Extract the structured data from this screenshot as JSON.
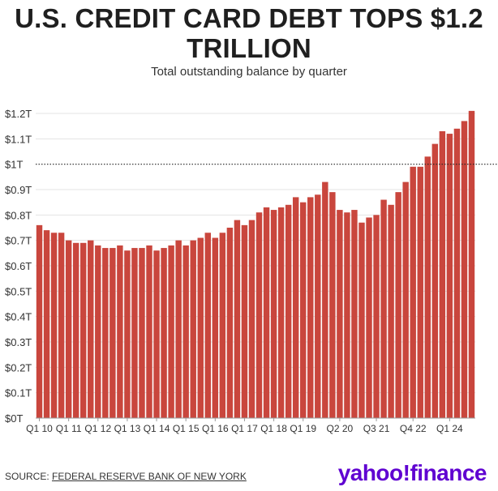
{
  "header": {
    "title_line1": "U.S. CREDIT CARD DEBT TOPS $1.2",
    "title_line2": "TRILLION",
    "subtitle": "Total outstanding balance by quarter"
  },
  "footer": {
    "source_prefix": "SOURCE: ",
    "source_link": "FEDERAL RESERVE BANK OF NEW YORK",
    "logo_text": "yahoo!finance"
  },
  "colors": {
    "bar": "#c9463d",
    "grid": "#e3e3e3",
    "reference_line": "#222222",
    "logo": "#5f01d1"
  },
  "chart_data": {
    "type": "bar",
    "title": "U.S. CREDIT CARD DEBT TOPS $1.2 TRILLION",
    "subtitle": "Total outstanding balance by quarter",
    "unit": "trillion USD",
    "ylim": [
      0,
      1.2
    ],
    "yticks": [
      0,
      0.1,
      0.2,
      0.3,
      0.4,
      0.5,
      0.6,
      0.7,
      0.8,
      0.9,
      1.0,
      1.1,
      1.2
    ],
    "ytick_labels": [
      "$0T",
      "$0.1T",
      "$0.2T",
      "$0.3T",
      "$0.4T",
      "$0.5T",
      "$0.6T",
      "$0.7T",
      "$0.8T",
      "$0.9T",
      "$1T",
      "$1.1T",
      "$1.2T"
    ],
    "reference_line": {
      "value": 1.0,
      "style": "dotted"
    },
    "grid": true,
    "xtick_labels": [
      {
        "index": 0,
        "label": "Q1 10"
      },
      {
        "index": 4,
        "label": "Q1 11"
      },
      {
        "index": 8,
        "label": "Q1 12"
      },
      {
        "index": 12,
        "label": "Q1 13"
      },
      {
        "index": 16,
        "label": "Q1 14"
      },
      {
        "index": 20,
        "label": "Q1 15"
      },
      {
        "index": 24,
        "label": "Q1 16"
      },
      {
        "index": 28,
        "label": "Q1 17"
      },
      {
        "index": 32,
        "label": "Q1 18"
      },
      {
        "index": 36,
        "label": "Q1 19"
      },
      {
        "index": 41,
        "label": "Q2 20"
      },
      {
        "index": 46,
        "label": "Q3 21"
      },
      {
        "index": 51,
        "label": "Q4 22"
      },
      {
        "index": 56,
        "label": "Q1 24"
      }
    ],
    "values": [
      0.76,
      0.74,
      0.73,
      0.73,
      0.7,
      0.69,
      0.69,
      0.7,
      0.68,
      0.67,
      0.67,
      0.68,
      0.66,
      0.67,
      0.67,
      0.68,
      0.66,
      0.67,
      0.68,
      0.7,
      0.68,
      0.7,
      0.71,
      0.73,
      0.71,
      0.73,
      0.75,
      0.78,
      0.76,
      0.78,
      0.81,
      0.83,
      0.82,
      0.83,
      0.84,
      0.87,
      0.85,
      0.87,
      0.88,
      0.93,
      0.89,
      0.82,
      0.81,
      0.82,
      0.77,
      0.79,
      0.8,
      0.86,
      0.84,
      0.89,
      0.93,
      0.99,
      0.99,
      1.03,
      1.08,
      1.13,
      1.12,
      1.14,
      1.17,
      1.21
    ]
  }
}
